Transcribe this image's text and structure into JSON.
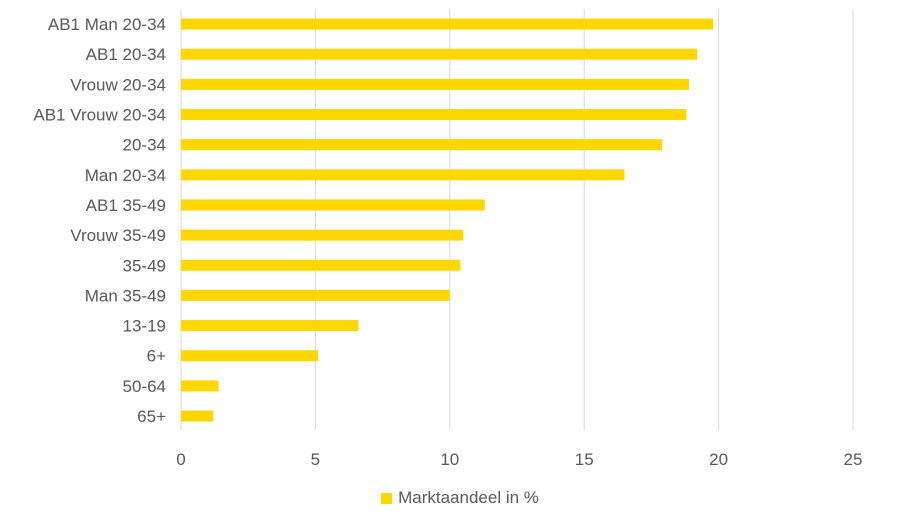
{
  "chart_data": {
    "type": "bar",
    "orientation": "horizontal",
    "categories": [
      "AB1 Man 20-34",
      "AB1 20-34",
      "Vrouw 20-34",
      "AB1 Vrouw 20-34",
      "20-34",
      "Man 20-34",
      "AB1 35-49",
      "Vrouw 35-49",
      "35-49",
      "Man 35-49",
      "13-19",
      "6+",
      "50-64",
      "65+"
    ],
    "series": [
      {
        "name": "Marktaandeel in %",
        "color": "#FFD700",
        "values": [
          19.8,
          19.2,
          18.9,
          18.8,
          17.9,
          16.5,
          11.3,
          10.5,
          10.4,
          10.0,
          6.6,
          5.1,
          1.4,
          1.2
        ]
      }
    ],
    "x_ticks": [
      "0",
      "5",
      "10",
      "15",
      "20",
      "25"
    ],
    "xlim": [
      0,
      25
    ],
    "grid": "vertical",
    "legend_position": "bottom"
  }
}
